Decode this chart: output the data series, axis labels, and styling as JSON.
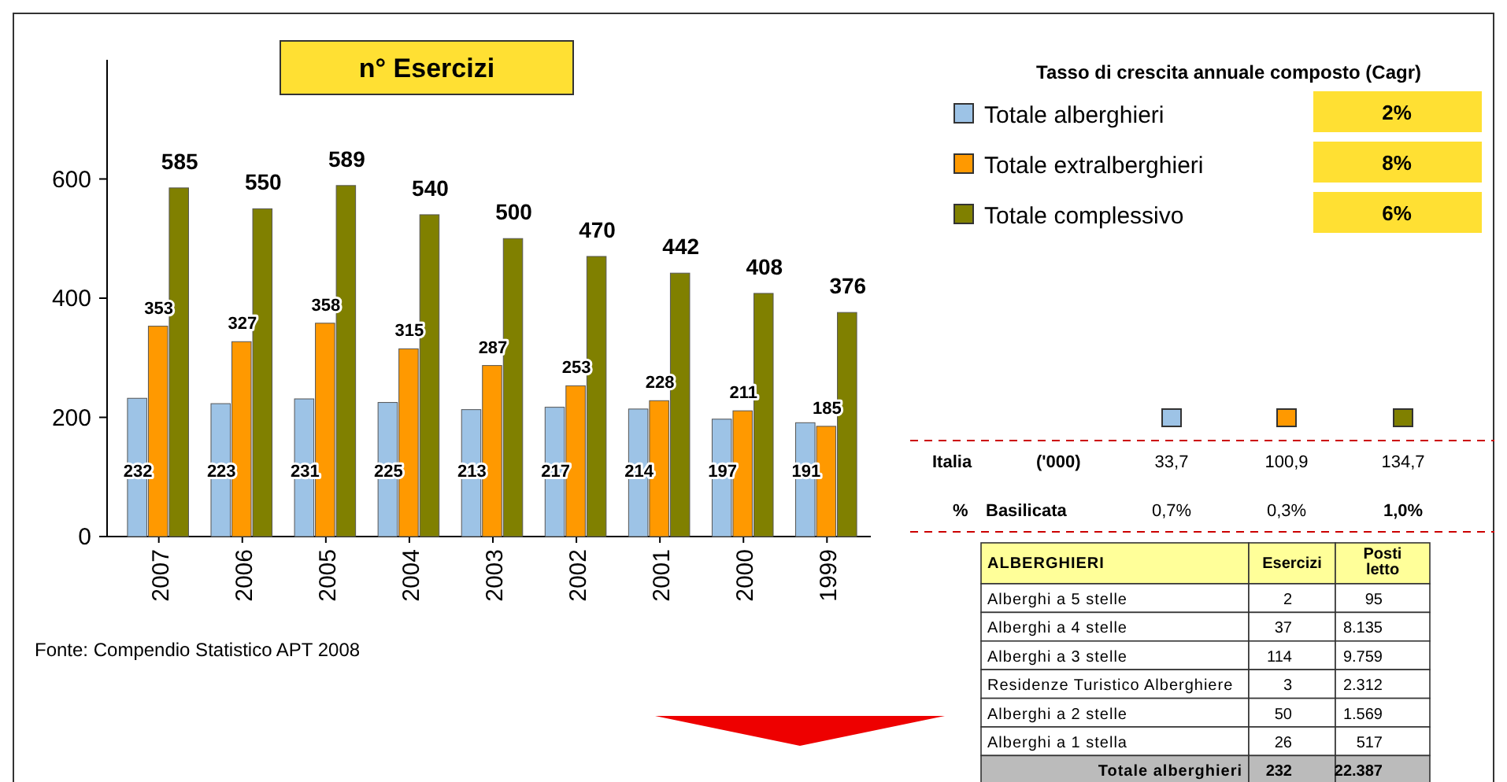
{
  "chart_data": [
    {
      "type": "bar",
      "title": "n° Esercizi",
      "categories": [
        "2007",
        "2006",
        "2005",
        "2004",
        "2003",
        "2002",
        "2001",
        "2000",
        "1999"
      ],
      "series": [
        {
          "name": "Totale alberghieri",
          "color": "#9dc3e6",
          "values": [
            232,
            223,
            231,
            225,
            213,
            217,
            214,
            197,
            191
          ]
        },
        {
          "name": "Totale extralberghieri",
          "color": "#ff9900",
          "values": [
            353,
            327,
            358,
            315,
            287,
            253,
            228,
            211,
            185
          ]
        },
        {
          "name": "Totale complessivo",
          "color": "#808000",
          "values": [
            585,
            550,
            589,
            540,
            500,
            470,
            442,
            408,
            376
          ]
        }
      ],
      "ylim": [
        0,
        800
      ],
      "yticks": [
        0,
        200,
        400,
        600
      ],
      "data_labels": true,
      "legend": "right",
      "grid": false,
      "annotations": [
        "Fonte: Compendio Statistico APT 2008"
      ]
    },
    {
      "type": "other",
      "title": "Tasso di crescita annuale composto (Cagr)",
      "annotations": [
        "2%",
        "8%",
        "6%"
      ]
    },
    {
      "type": "other",
      "annotations": [
        "Italia",
        "('000)",
        "33,7",
        "100,9",
        "134,7",
        "%",
        "Basilicata",
        "0,7%",
        "0,3%",
        "1,0%"
      ]
    },
    {
      "type": "other",
      "annotations": [
        "ALBERGHIERI",
        "Esercizi",
        "Posti letto",
        "Alberghi a 5 stelle",
        "2",
        "95",
        "Alberghi a 4 stelle",
        "37",
        "8.135",
        "Alberghi a 3 stelle",
        "114",
        "9.759",
        "Residenze Turistico Alberghiere",
        "3",
        "2.312",
        "Alberghi a 2 stelle",
        "50",
        "1.569",
        "Alberghi a 1 stella",
        "26",
        "517",
        "Totale alberghieri",
        "232",
        "22.387"
      ]
    }
  ]
}
